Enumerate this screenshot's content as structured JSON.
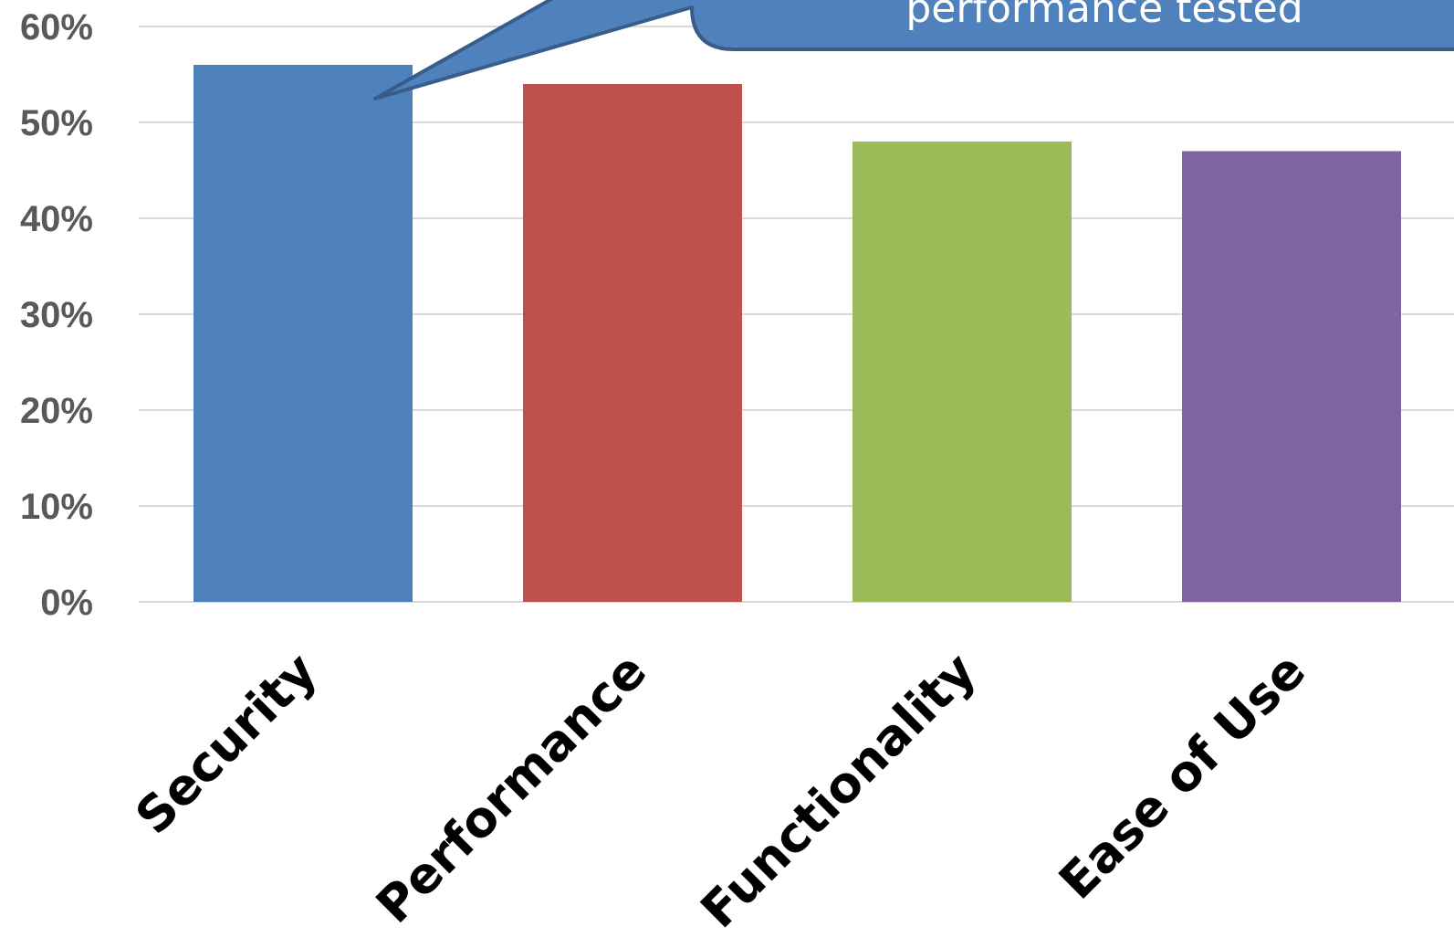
{
  "chart_data": {
    "type": "bar",
    "title": "",
    "xlabel": "",
    "ylabel": "",
    "categories": [
      "Security",
      "Performance",
      "Functionality",
      "Ease of Use"
    ],
    "values": [
      56,
      54,
      48,
      47
    ],
    "value_unit": "%",
    "ylim": [
      0,
      60
    ],
    "yticks": [
      0,
      10,
      20,
      30,
      40,
      50,
      60
    ],
    "ytick_labels": [
      "0%",
      "10%",
      "20%",
      "30%",
      "40%",
      "50%",
      "60%"
    ],
    "grid": true,
    "legend": "none",
    "colors": [
      "#4f81bd",
      "#c0504d",
      "#9bbb59",
      "#8064a2"
    ],
    "gridline_color": "#d9d9d9",
    "annotation": {
      "text": "performance tested",
      "points_to": "Security",
      "fill": "#4f81bd",
      "stroke": "#385d8a"
    }
  }
}
